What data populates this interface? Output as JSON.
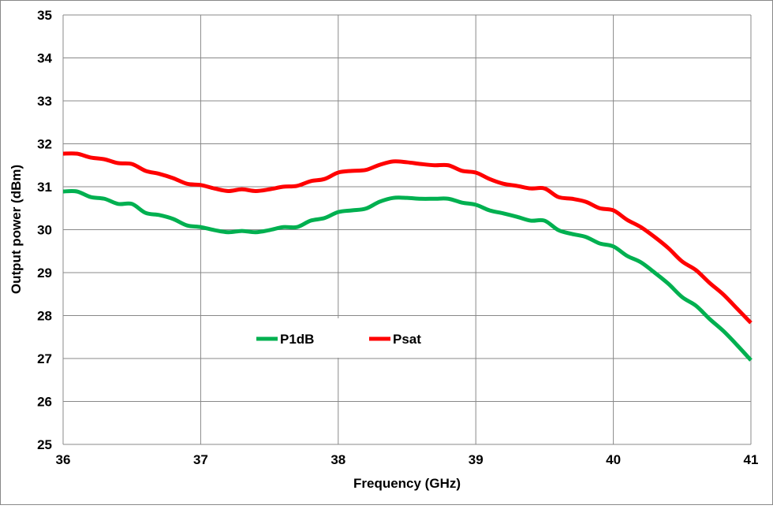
{
  "chart_data": {
    "type": "line",
    "title": "",
    "xlabel": "Frequency (GHz)",
    "ylabel": "Output power (dBm)",
    "xlim": [
      36,
      41
    ],
    "ylim": [
      25,
      35
    ],
    "xticks": [
      36,
      37,
      38,
      39,
      40,
      41
    ],
    "yticks": [
      25,
      26,
      27,
      28,
      29,
      30,
      31,
      32,
      33,
      34,
      35
    ],
    "grid": true,
    "legend_position": "center",
    "x": [
      36.0,
      36.1,
      36.2,
      36.3,
      36.4,
      36.5,
      36.6,
      36.7,
      36.8,
      36.9,
      37.0,
      37.1,
      37.2,
      37.3,
      37.4,
      37.5,
      37.6,
      37.7,
      37.8,
      37.9,
      38.0,
      38.1,
      38.2,
      38.3,
      38.4,
      38.5,
      38.6,
      38.7,
      38.8,
      38.9,
      39.0,
      39.1,
      39.2,
      39.3,
      39.4,
      39.5,
      39.6,
      39.7,
      39.8,
      39.9,
      40.0,
      40.1,
      40.2,
      40.3,
      40.4,
      40.5,
      40.6,
      40.7,
      40.8,
      40.9,
      41.0
    ],
    "series": [
      {
        "name": "P1dB",
        "color": "#00b050",
        "values": [
          30.89,
          30.89,
          30.76,
          30.72,
          30.6,
          30.6,
          30.39,
          30.34,
          30.25,
          30.1,
          30.06,
          29.99,
          29.94,
          29.97,
          29.94,
          29.99,
          30.06,
          30.06,
          30.21,
          30.27,
          30.41,
          30.45,
          30.49,
          30.65,
          30.74,
          30.74,
          30.72,
          30.72,
          30.72,
          30.63,
          30.58,
          30.45,
          30.38,
          30.3,
          30.21,
          30.21,
          29.99,
          29.9,
          29.83,
          29.68,
          29.61,
          29.39,
          29.24,
          29.0,
          28.74,
          28.43,
          28.23,
          27.92,
          27.64,
          27.31,
          26.96
        ]
      },
      {
        "name": "Psat",
        "color": "#ff0000",
        "values": [
          31.77,
          31.77,
          31.68,
          31.64,
          31.55,
          31.53,
          31.37,
          31.3,
          31.2,
          31.07,
          31.04,
          30.96,
          30.9,
          30.94,
          30.9,
          30.94,
          31.0,
          31.02,
          31.13,
          31.18,
          31.33,
          31.37,
          31.39,
          31.51,
          31.59,
          31.57,
          31.53,
          31.5,
          31.5,
          31.37,
          31.33,
          31.18,
          31.07,
          31.02,
          30.96,
          30.96,
          30.76,
          30.72,
          30.65,
          30.5,
          30.45,
          30.23,
          30.06,
          29.83,
          29.57,
          29.26,
          29.06,
          28.76,
          28.49,
          28.16,
          27.83
        ]
      }
    ]
  }
}
